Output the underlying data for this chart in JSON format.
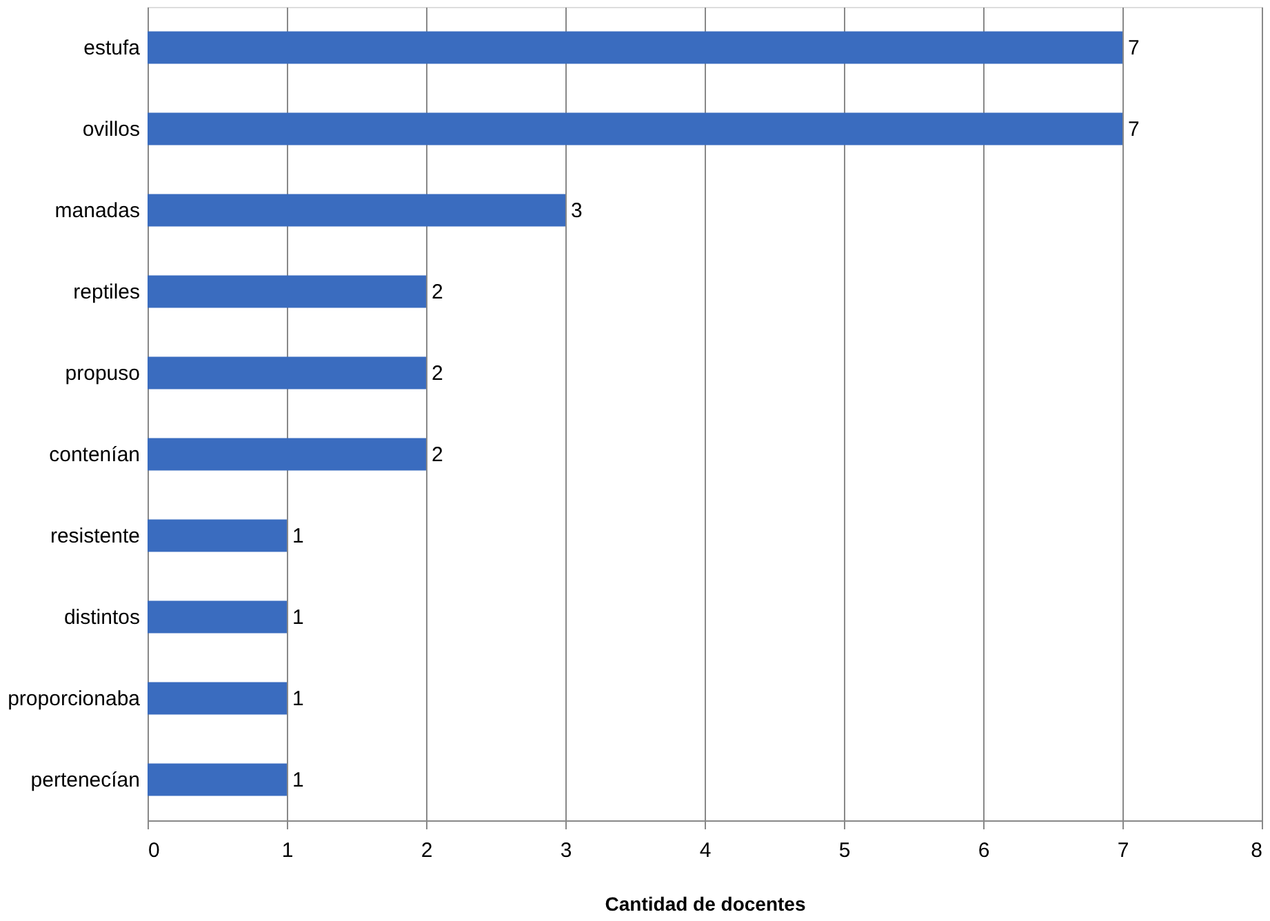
{
  "chart_data": {
    "type": "bar",
    "orientation": "horizontal",
    "xlabel": "Cantidad de docentes",
    "categories": [
      "estufa",
      "ovillos",
      "manadas",
      "reptiles",
      "propuso",
      "contenían",
      "resistente",
      "distintos",
      "proporcionaba",
      "pertenecían"
    ],
    "values": [
      7,
      7,
      3,
      2,
      2,
      2,
      1,
      1,
      1,
      1
    ],
    "color": "#3a6cbf",
    "xlim": [
      0,
      8
    ],
    "xticks": [
      0,
      1,
      2,
      3,
      4,
      5,
      6,
      7,
      8
    ],
    "grid": "x",
    "data_labels": true
  }
}
